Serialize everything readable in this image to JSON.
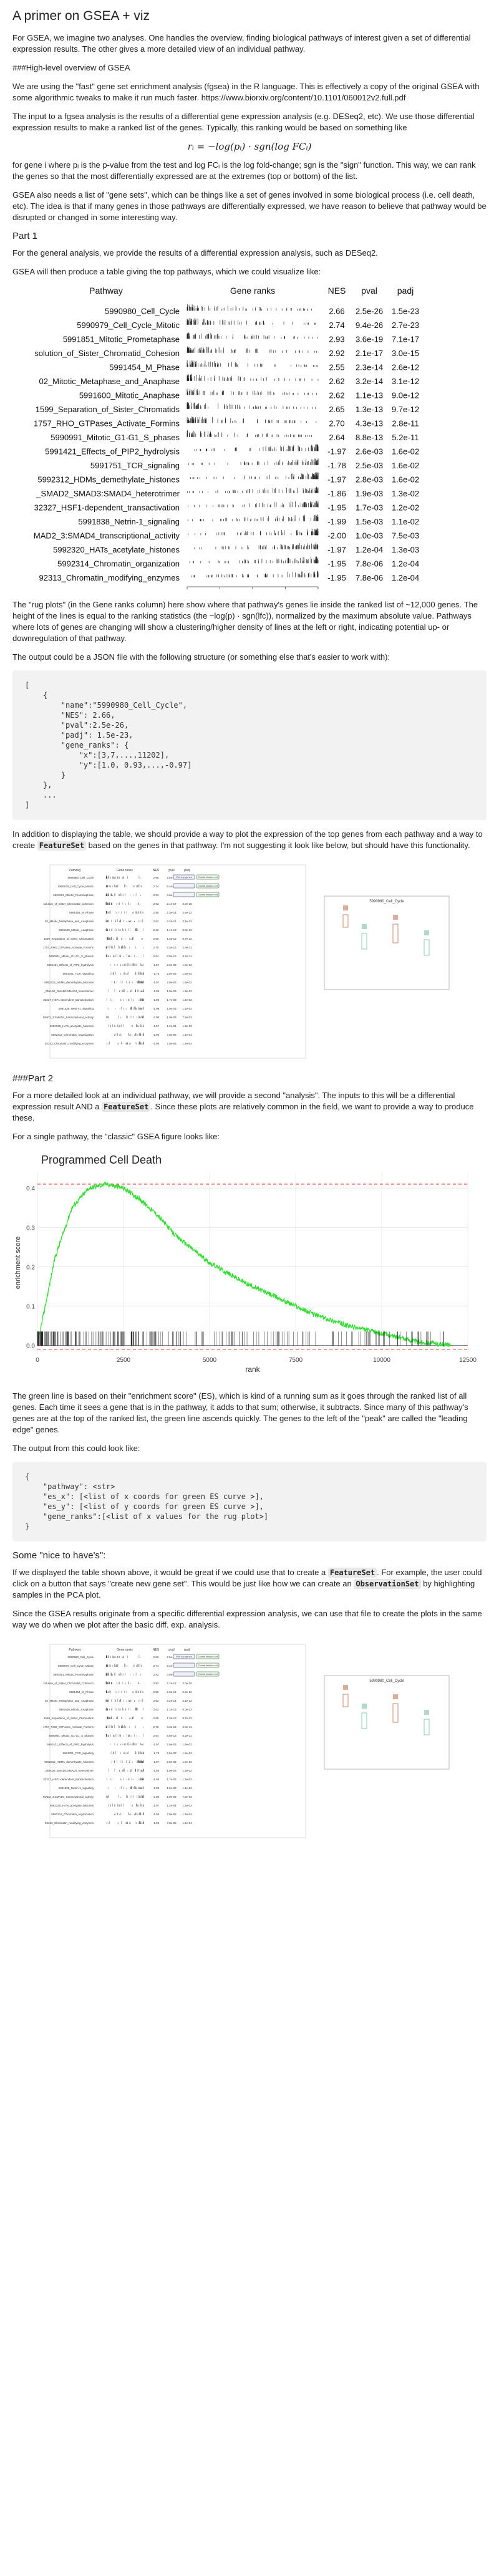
{
  "title": "A primer on GSEA + viz",
  "intro": "For GSEA, we imagine two analyses. One handles the overview, finding biological pathways of interest given a set of differential expression results. The other gives a more detailed view of an individual pathway.",
  "overview_heading": "###High-level overview of GSEA",
  "p_fgsea": "We are using the \"fast\" gene set enrichment analysis (fgsea) in the R language. This is effectively a copy of the original GSEA with some algorithmic tweaks to make it run much faster. https://www.biorxiv.org/content/10.1101/060012v2.full.pdf",
  "p_input": "The input to a fgsea analysis is the results of a differential gene expression analysis (e.g. DESeq2, etc). We use those differential expression results to make a ranked list of the genes. Typically, this ranking would be based on something like",
  "formula": "rᵢ = −log(pᵢ) · sgn(log FCᵢ)",
  "p_formula_explain": "for gene i where pᵢ is the p-value from the test and log FCᵢ is the log fold-change; sgn is the \"sign\" function. This way, we can rank the genes so that the most differentially expressed are at the extremes (top or bottom) of the list.",
  "p_genesets": "GSEA also needs a list of \"gene sets\", which can be things like a set of genes involved in some biological process (i.e. cell death, etc). The idea is that if many genes in those pathways are differentially expressed, we have reason to believe that pathway would be disrupted or changed in some interesting way.",
  "part1_label": "Part 1",
  "p_part1": "For the general analysis, we provide the results of a differential expression analysis, such as DESeq2.",
  "p_table_intro": "GSEA will then produce a table giving the top pathways, which we could visualize like:",
  "table_plot": {
    "headers": [
      "Pathway",
      "Gene ranks",
      "NES",
      "pval",
      "padj"
    ],
    "x_ticks": [
      "0",
      "3000",
      "6000",
      "9000",
      "12000"
    ],
    "rows": [
      {
        "pathway": "5990980_Cell_Cycle",
        "nes": "2.66",
        "pval": "2.5e-26",
        "padj": "1.5e-23",
        "dir": 1
      },
      {
        "pathway": "5990979_Cell_Cycle_Mitotic",
        "nes": "2.74",
        "pval": "9.4e-26",
        "padj": "2.7e-23",
        "dir": 1
      },
      {
        "pathway": "5991851_Mitotic_Prometaphase",
        "nes": "2.93",
        "pval": "3.6e-19",
        "padj": "7.1e-17",
        "dir": 1
      },
      {
        "pathway": "solution_of_Sister_Chromatid_Cohesion",
        "nes": "2.92",
        "pval": "2.1e-17",
        "padj": "3.0e-15",
        "dir": 1
      },
      {
        "pathway": "5991454_M_Phase",
        "nes": "2.55",
        "pval": "2.3e-14",
        "padj": "2.6e-12",
        "dir": 1
      },
      {
        "pathway": "02_Mitotic_Metaphase_and_Anaphase",
        "nes": "2.62",
        "pval": "3.2e-14",
        "padj": "3.1e-12",
        "dir": 1
      },
      {
        "pathway": "5991600_Mitotic_Anaphase",
        "nes": "2.62",
        "pval": "1.1e-13",
        "padj": "9.0e-12",
        "dir": 1
      },
      {
        "pathway": "1599_Separation_of_Sister_Chromatids",
        "nes": "2.65",
        "pval": "1.3e-13",
        "padj": "9.7e-12",
        "dir": 1
      },
      {
        "pathway": "1757_RHO_GTPases_Activate_Formins",
        "nes": "2.70",
        "pval": "4.3e-13",
        "padj": "2.8e-11",
        "dir": 1
      },
      {
        "pathway": "5990991_Mitotic_G1-G1_S_phases",
        "nes": "2.64",
        "pval": "8.8e-13",
        "padj": "5.2e-11",
        "dir": 1
      },
      {
        "pathway": "5991421_Effects_of_PIP2_hydrolysis",
        "nes": "-1.97",
        "pval": "2.6e-03",
        "padj": "1.6e-02",
        "dir": -1
      },
      {
        "pathway": "5991751_TCR_signaling",
        "nes": "-1.78",
        "pval": "2.5e-03",
        "padj": "1.6e-02",
        "dir": -1
      },
      {
        "pathway": "5992312_HDMs_demethylate_histones",
        "nes": "-1.97",
        "pval": "2.8e-03",
        "padj": "1.6e-02",
        "dir": -1
      },
      {
        "pathway": "_SMAD2_SMAD3:SMAD4_heterotrimer",
        "nes": "-1.86",
        "pval": "1.9e-03",
        "padj": "1.3e-02",
        "dir": -1
      },
      {
        "pathway": "32327_HSF1-dependent_transactivation",
        "nes": "-1.95",
        "pval": "1.7e-03",
        "padj": "1.2e-02",
        "dir": -1
      },
      {
        "pathway": "5991838_Netrin-1_signaling",
        "nes": "-1.99",
        "pval": "1.5e-03",
        "padj": "1.1e-02",
        "dir": -1
      },
      {
        "pathway": "MAD2_3:SMAD4_transcriptional_activity",
        "nes": "-2.00",
        "pval": "1.0e-03",
        "padj": "7.5e-03",
        "dir": -1
      },
      {
        "pathway": "5992320_HATs_acetylate_histones",
        "nes": "-1.97",
        "pval": "1.2e-04",
        "padj": "1.3e-03",
        "dir": -1
      },
      {
        "pathway": "5992314_Chromatin_organization",
        "nes": "-1.95",
        "pval": "7.8e-06",
        "padj": "1.2e-04",
        "dir": -1
      },
      {
        "pathway": "92313_Chromatin_modifying_enzymes",
        "nes": "-1.95",
        "pval": "7.8e-06",
        "padj": "1.2e-04",
        "dir": -1
      }
    ]
  },
  "p_rugplots": "The \"rug plots\" (in the Gene ranks column) here show where that pathway's genes lie inside the ranked list of ~12,000 genes. The height of the lines is equal to the ranking statistics (the −log(p) · sgn(lfc)), normalized by the maximum absolute value. Pathways where lots of genes are changing will show a clustering/higher density of lines at the left or right, indicating potential up- or downregulation of that pathway.",
  "p_json_intro": "The output could be a JSON file with the following structure (or something else that's easier to work with):",
  "json_code": "[\n    {\n        \"name\":\"5990980_Cell_Cycle\",\n        \"NES\": 2.66,\n        \"pval\":2.5e-26,\n        \"padj\": 1.5e-23,\n        \"gene_ranks\": {\n            \"x\":[3,7,...,11202],\n            \"y\":[1.0, 0.93,...,-0.97]\n        }\n    },\n    ...\n]",
  "p_featureset_pre": "In addition to displaying the table, we should provide a way to plot the expression of the top genes from each pathway and a way to create ",
  "featureset_code": "FeatureSet",
  "p_featureset_post": " based on the genes in that pathway. I'm not suggesting it look like below, but should have this functionality.",
  "mock": {
    "headers": [
      "Pathway",
      "Gene ranks",
      "NES",
      "pval",
      "padj"
    ],
    "btn_create": "Create feature set",
    "btn_plot": "Plot top genes",
    "side_title": "5990980_Cell_Cycle"
  },
  "part2_label": "###Part 2",
  "p_part2_pre": "For a more detailed look at an individual pathway, we will provide a second \"analysis\". The inputs to this will be a differential expression result AND a ",
  "p_part2_post": ". Since these plots are relatively common in the field, we want to provide a way to produce these.",
  "p_classic": "For a single pathway, the \"classic\" GSEA figure looks like:",
  "es_chart": {
    "title": "Programmed Cell Death",
    "ylabel": "enrichment score",
    "xlabel": "rank",
    "y_ticks": [
      "0.0",
      "0.1",
      "0.2",
      "0.3",
      "0.4"
    ],
    "x_ticks": [
      "0",
      "2500",
      "5000",
      "7500",
      "10000",
      "12500"
    ]
  },
  "chart_data": {
    "type": "line",
    "title": "Programmed Cell Death",
    "xlabel": "rank",
    "ylabel": "enrichment score",
    "xlim": [
      0,
      12500
    ],
    "ylim": [
      -0.02,
      0.44
    ],
    "series": [
      {
        "values_x": [
          0,
          500,
          1000,
          1500,
          2000,
          2500,
          3000,
          3500,
          4000,
          5000,
          6000,
          7000,
          8000,
          9000,
          10000,
          11000,
          12000
        ],
        "values_y": [
          0.0,
          0.22,
          0.35,
          0.4,
          0.41,
          0.4,
          0.37,
          0.33,
          0.28,
          0.21,
          0.16,
          0.12,
          0.08,
          0.05,
          0.03,
          0.01,
          0.0
        ]
      }
    ],
    "reference_lines": {
      "max_es": 0.41,
      "min_es": -0.01
    }
  },
  "p_green": "The green line is based on their \"enrichment score\" (ES), which is kind of a running sum as it goes through the ranked list of all genes. Each time it sees a gene that is in the pathway, it adds to that sum; otherwise, it subtracts. Since many of this pathway's genes are at the top of the ranked list, the green line ascends quickly. The genes to the left of the \"peak\" are called the \"leading edge\" genes.",
  "p_output2": "The output from this could look like:",
  "output2_code": "{\n    \"pathway\": <str>\n    \"es_x\": [<list of x coords for green ES curve >],\n    \"es_y\": [<list of y coords for green ES curve >],\n    \"gene_ranks\":[<list of x values for the rug plot>]\n}",
  "nice_label": "Some \"nice to have's\":",
  "p_nice1_pre": "If we displayed the table shown above, it would be great if we could use that to create a ",
  "p_nice1_mid": ". For example, the user could click on a button that says \"create new gene set\". This would be just like how we can create an ",
  "observation_code": "ObservationSet",
  "p_nice1_post": " by highlighting samples in the PCA plot.",
  "p_nice2": "Since the GSEA results originate from a specific differential expression analysis, we can use that file to create the plots in the same way we do when we plot after the basic diff. exp. analysis."
}
